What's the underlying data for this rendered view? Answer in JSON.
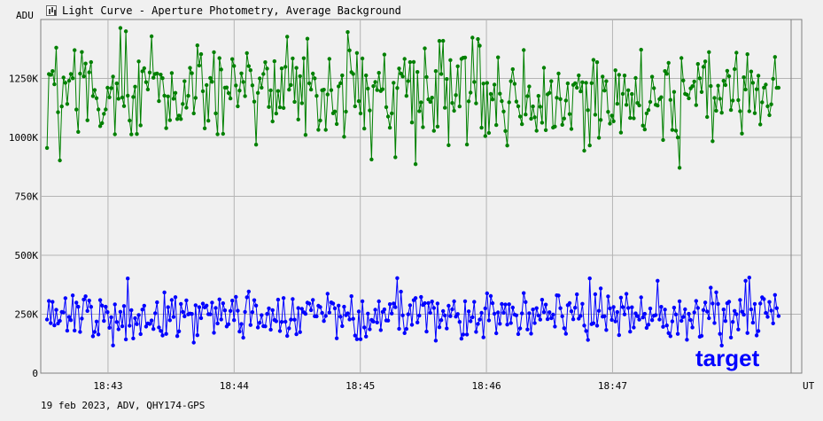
{
  "window": {
    "title": "Light Curve - Aperture Photometry, Average Background",
    "icon": "chart-icon"
  },
  "chart_data": {
    "type": "line",
    "title": "Light Curve - Aperture Photometry, Average Background",
    "ylabel": "ADU",
    "xlabel": "UT",
    "ylim": [
      0,
      1500000
    ],
    "xlim": [
      "18:42:28",
      "18:48:30"
    ],
    "y_ticks": [
      {
        "value": 0,
        "label": "0"
      },
      {
        "value": 250000,
        "label": "250K"
      },
      {
        "value": 500000,
        "label": "500K"
      },
      {
        "value": 750000,
        "label": "750K"
      },
      {
        "value": 1000000,
        "label": "1000K"
      },
      {
        "value": 1250000,
        "label": "1250K"
      }
    ],
    "x_ticks": [
      {
        "value": "18:43:00",
        "label": "18:43"
      },
      {
        "value": "18:44:00",
        "label": "18:44"
      },
      {
        "value": "18:45:00",
        "label": "18:45"
      },
      {
        "value": "18:46:00",
        "label": "18:46"
      },
      {
        "value": "18:47:00",
        "label": "18:47"
      }
    ],
    "grid": true,
    "series": [
      {
        "name": "",
        "color": "#008000",
        "point_count": 400,
        "mean": 1190000,
        "min_y": 860000,
        "max_y": 1470000
      },
      {
        "name": "target",
        "color": "#0000ff",
        "point_count": 400,
        "mean": 245000,
        "min_y": 115000,
        "max_y": 410000
      }
    ],
    "annotations": [
      {
        "text": "target",
        "color": "#0000ff",
        "position": "bottom-right"
      }
    ]
  },
  "footer": {
    "text": "19 feb 2023, ADV, QHY174-GPS"
  }
}
